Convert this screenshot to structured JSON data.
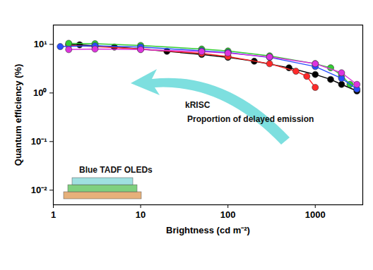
{
  "chart_data": {
    "type": "line",
    "x_label": "Brightness (cd m⁻²)",
    "y_label": "Quantum efficiency (%)",
    "log": true,
    "grid": false,
    "marker": "circle",
    "line_style": "solid",
    "xlim": [
      1,
      3500
    ],
    "ylim": [
      0.005,
      25
    ],
    "xticks": [
      1,
      10,
      100,
      1000
    ],
    "yticks": [
      {
        "value": 0.01,
        "label": "10⁻²"
      },
      {
        "value": 0.1,
        "label": "10⁻¹"
      },
      {
        "value": 1,
        "label": "10⁰"
      },
      {
        "value": 10,
        "label": "10¹"
      }
    ],
    "annotations": [
      "kRISC",
      "Proportion of delayed emission",
      "Blue TADF OLEDs"
    ],
    "series": [
      {
        "color": "#000000",
        "x": [
          1.5,
          2,
          3,
          5,
          10,
          20,
          50,
          100,
          200,
          500,
          1000,
          1500,
          2000,
          3000
        ],
        "values": [
          10,
          9.8,
          9.3,
          8.8,
          8,
          7.2,
          6.2,
          5.4,
          4.5,
          3.3,
          2.4,
          1.9,
          1.5,
          1.1
        ]
      },
      {
        "color": "#ff2a2a",
        "x": [
          1.5,
          3,
          10,
          50,
          100,
          300,
          600,
          800,
          1000
        ],
        "values": [
          9.5,
          9,
          8,
          6.5,
          5.6,
          4,
          2.8,
          2.2,
          1.3
        ]
      },
      {
        "color": "#33cc33",
        "x": [
          1.5,
          3,
          10,
          50,
          100,
          300,
          1000,
          1500,
          2000,
          2500
        ],
        "values": [
          10.5,
          10.3,
          9.5,
          8,
          7.3,
          5.8,
          4,
          3.3,
          2.3,
          1.5
        ]
      },
      {
        "color": "#2a4fff",
        "x": [
          1.2,
          3,
          10,
          50,
          100,
          300,
          1000,
          2000,
          3000
        ],
        "values": [
          9,
          9.3,
          8.8,
          7.4,
          6.8,
          5.4,
          3.5,
          2,
          1.2
        ]
      },
      {
        "color": "#dd33dd",
        "x": [
          1.5,
          3,
          10,
          50,
          100,
          300,
          1000,
          2000,
          3000
        ],
        "values": [
          7.8,
          8,
          7.8,
          7.1,
          6.6,
          5.5,
          4,
          2.6,
          1.5
        ]
      }
    ]
  }
}
